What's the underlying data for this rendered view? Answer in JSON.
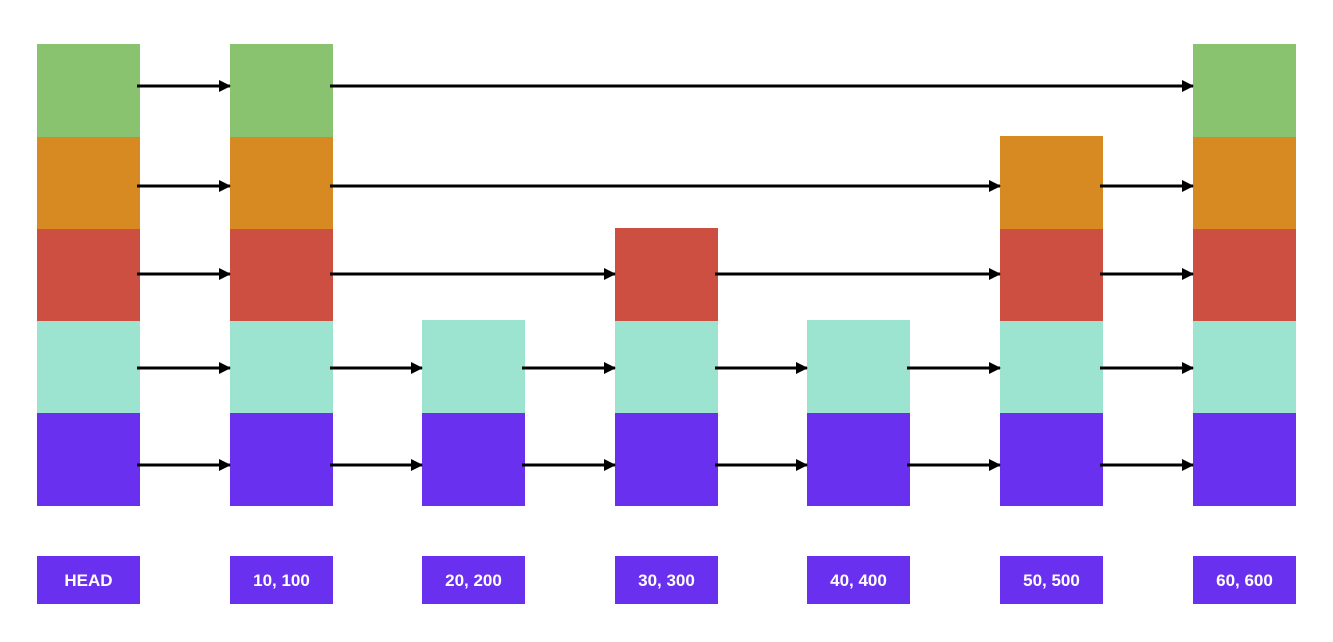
{
  "colors": {
    "level_colors": [
      "#6a30f0",
      "#9ce3d0",
      "#cd4f42",
      "#d88a22",
      "#8ac36f"
    ],
    "label_background": "#6a30f0",
    "label_text": "#ffffff",
    "arrow": "#000000"
  },
  "nodes": [
    {
      "label": "HEAD",
      "levels": 5
    },
    {
      "label": "10, 100",
      "levels": 5
    },
    {
      "label": "20, 200",
      "levels": 2
    },
    {
      "label": "30, 300",
      "levels": 3
    },
    {
      "label": "40, 400",
      "levels": 2
    },
    {
      "label": "50, 500",
      "levels": 4
    },
    {
      "label": "60, 600",
      "levels": 5
    }
  ],
  "links": [
    {
      "level": 0,
      "from": 0,
      "to": 1
    },
    {
      "level": 0,
      "from": 1,
      "to": 2
    },
    {
      "level": 0,
      "from": 2,
      "to": 3
    },
    {
      "level": 0,
      "from": 3,
      "to": 4
    },
    {
      "level": 0,
      "from": 4,
      "to": 5
    },
    {
      "level": 0,
      "from": 5,
      "to": 6
    },
    {
      "level": 1,
      "from": 0,
      "to": 1
    },
    {
      "level": 1,
      "from": 1,
      "to": 2
    },
    {
      "level": 1,
      "from": 2,
      "to": 3
    },
    {
      "level": 1,
      "from": 3,
      "to": 4
    },
    {
      "level": 1,
      "from": 4,
      "to": 5
    },
    {
      "level": 1,
      "from": 5,
      "to": 6
    },
    {
      "level": 2,
      "from": 0,
      "to": 1
    },
    {
      "level": 2,
      "from": 1,
      "to": 3
    },
    {
      "level": 2,
      "from": 3,
      "to": 5
    },
    {
      "level": 2,
      "from": 5,
      "to": 6
    },
    {
      "level": 3,
      "from": 0,
      "to": 1
    },
    {
      "level": 3,
      "from": 1,
      "to": 5
    },
    {
      "level": 3,
      "from": 5,
      "to": 6
    },
    {
      "level": 4,
      "from": 0,
      "to": 1
    },
    {
      "level": 4,
      "from": 1,
      "to": 6
    }
  ]
}
